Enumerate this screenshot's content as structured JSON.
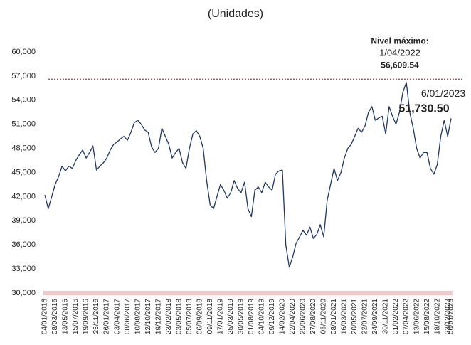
{
  "chart_data": {
    "type": "line",
    "title": "(Unidades)",
    "categories": [
      "04/01/2016",
      null,
      null,
      "08/03/2016",
      null,
      null,
      "13/05/2016",
      null,
      null,
      "15/07/2016",
      null,
      null,
      "19/09/2016",
      null,
      null,
      "23/11/2016",
      null,
      null,
      "26/01/2017",
      null,
      null,
      "03/04/2017",
      null,
      null,
      "08/06/2017",
      null,
      null,
      "10/08/2017",
      null,
      null,
      "12/10/2017",
      null,
      null,
      "19/12/2017",
      null,
      null,
      "23/02/2018",
      null,
      null,
      "03/05/2018",
      null,
      null,
      "05/07/2018",
      null,
      null,
      "06/09/2018",
      null,
      null,
      "09/11/2018",
      null,
      null,
      "17/01/2019",
      null,
      null,
      "25/03/2019",
      null,
      null,
      "30/05/2019",
      null,
      null,
      "01/08/2019",
      null,
      null,
      "04/10/2019",
      null,
      null,
      "09/12/2019",
      null,
      null,
      "14/02/2020",
      null,
      null,
      "22/04/2020",
      null,
      null,
      "25/06/2020",
      null,
      null,
      "27/08/2020",
      null,
      null,
      "03/11/2020",
      null,
      null,
      "08/01/2021",
      null,
      null,
      "16/03/2021",
      null,
      null,
      "20/05/2021",
      null,
      null,
      "22/07/2021",
      null,
      null,
      "24/09/2021",
      null,
      null,
      "30/11/2021",
      null,
      null,
      "01/02/2022",
      null,
      null,
      "07/04/2022",
      null,
      null,
      "13/06/2022",
      null,
      null,
      "15/08/2022",
      null,
      null,
      "18/10/2022",
      null,
      null,
      "23/12/2022",
      "06/01/2023"
    ],
    "series": [
      {
        "color": "#1f3864",
        "values": [
          42200,
          40500,
          42000,
          43500,
          44500,
          45800,
          45200,
          45800,
          45500,
          46500,
          47200,
          47800,
          46800,
          47500,
          48300,
          45300,
          45800,
          46200,
          46800,
          47800,
          48500,
          48800,
          49200,
          49500,
          49000,
          50000,
          51200,
          51500,
          51000,
          50300,
          50000,
          48200,
          47500,
          48000,
          50500,
          49500,
          48500,
          46800,
          47500,
          48000,
          46200,
          45500,
          48000,
          49800,
          50200,
          49500,
          48000,
          44000,
          41000,
          40500,
          42000,
          43500,
          42800,
          41800,
          42500,
          44000,
          43000,
          42500,
          43800,
          40500,
          39500,
          42800,
          43200,
          42500,
          43800,
          43200,
          42800,
          44800,
          45200,
          45300,
          36000,
          33200,
          34500,
          36200,
          37000,
          37800,
          37200,
          38200,
          36800,
          37300,
          38500,
          37000,
          41500,
          43500,
          45500,
          44000,
          45000,
          46800,
          48000,
          48500,
          49500,
          50500,
          50000,
          50800,
          52500,
          53200,
          51500,
          51800,
          52000,
          49800,
          53200,
          52000,
          51000,
          52500,
          55000,
          56200,
          52500,
          50500,
          48000,
          46800,
          47500,
          47500,
          45500,
          44800,
          46000,
          49500,
          51500,
          49500,
          51730.5
        ]
      }
    ],
    "ylim": [
      30000,
      60000
    ],
    "yticks": [
      {
        "value": 30000,
        "label": "30,000"
      },
      {
        "value": 33000,
        "label": "33,000"
      },
      {
        "value": 36000,
        "label": "36,000"
      },
      {
        "value": 39000,
        "label": "39,000"
      },
      {
        "value": 42000,
        "label": "42,000"
      },
      {
        "value": 45000,
        "label": "45,000"
      },
      {
        "value": 48000,
        "label": "48,000"
      },
      {
        "value": 51000,
        "label": "51,000"
      },
      {
        "value": 54000,
        "label": "54,000"
      },
      {
        "value": 57000,
        "label": "57,000"
      },
      {
        "value": 60000,
        "label": "60,000"
      }
    ],
    "max_annotation": {
      "label": "Nivel máximo:",
      "date": "1/04/2022",
      "value": 56609.54,
      "value_label": "56,609.54",
      "color": "#c00000"
    },
    "last_annotation": {
      "date": "6/01/2023",
      "value": 51730.5,
      "value_label": "51,730.50"
    }
  }
}
